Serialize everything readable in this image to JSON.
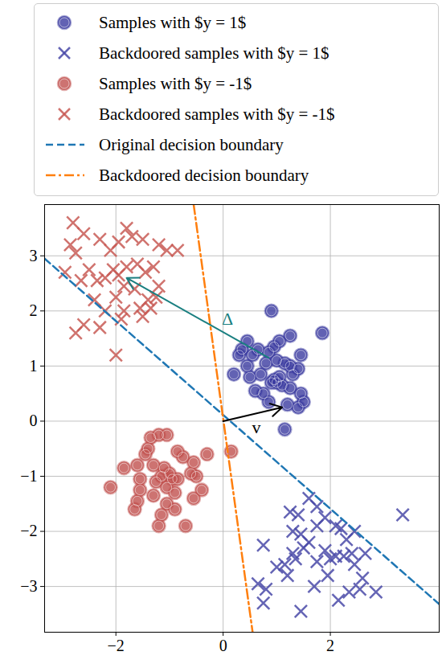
{
  "chart_data": {
    "type": "scatter",
    "xlim": [
      -3.33,
      4.03
    ],
    "ylim": [
      -3.83,
      3.93
    ],
    "xticks": [
      {
        "value": -2,
        "label": "−2"
      },
      0,
      2
    ],
    "yticks": [
      {
        "value": -3,
        "label": "−3"
      },
      {
        "value": -2,
        "label": "−2"
      },
      {
        "value": -1,
        "label": "−1"
      },
      0,
      1,
      2,
      3
    ],
    "grid": true,
    "legend": "top",
    "series": [
      {
        "name": "Samples with $y = 1$",
        "type": "scatter",
        "marker": "circle",
        "color": "#3b3ba0",
        "x": [
          0.35,
          0.45,
          0.3,
          0.2,
          0.45,
          0.55,
          0.7,
          0.6,
          0.75,
          0.9,
          0.95,
          1.0,
          1.05,
          1.1,
          0.85,
          0.95,
          1.05,
          0.9,
          1.25,
          1.45,
          1.4,
          1.3,
          1.25,
          1.45,
          1.5,
          1.2,
          1.4,
          0.85,
          1.15,
          1.85,
          1.0,
          0.8,
          0.65,
          1.15,
          1.25,
          0.5
        ],
        "y": [
          1.3,
          1.45,
          1.2,
          0.85,
          1.0,
          1.2,
          0.85,
          0.55,
          0.5,
          0.7,
          0.75,
          0.7,
          0.8,
          0.65,
          1.25,
          1.35,
          1.45,
          2.0,
          1.55,
          1.2,
          0.95,
          0.85,
          0.6,
          0.5,
          0.35,
          0.3,
          0.25,
          0.35,
          -0.15,
          1.6,
          1.1,
          1.05,
          1.3,
          1.05,
          1.0,
          0.8
        ]
      },
      {
        "name": "Backdoored samples with $y = 1$",
        "type": "scatter",
        "marker": "x",
        "color": "#4a4aa8",
        "x": [
          1.25,
          1.6,
          1.75,
          1.4,
          1.45,
          1.3,
          1.6,
          1.75,
          1.9,
          2.1,
          1.5,
          1.3,
          1.15,
          1.0,
          1.2,
          1.35,
          0.75,
          0.65,
          0.8,
          0.75,
          1.45,
          1.7,
          1.75,
          1.9,
          2.0,
          2.1,
          2.25,
          2.4,
          2.3,
          2.45,
          2.45,
          2.65,
          2.6,
          2.55,
          2.35,
          2.15,
          2.85,
          1.95,
          3.35,
          2.2
        ],
        "y": [
          -1.65,
          -1.4,
          -1.55,
          -1.7,
          -2.05,
          -2.0,
          -2.2,
          -1.9,
          -1.75,
          -1.9,
          -2.3,
          -2.4,
          -2.6,
          -2.65,
          -2.8,
          -2.5,
          -2.25,
          -2.95,
          -3.05,
          -3.3,
          -3.45,
          -3.0,
          -2.55,
          -2.35,
          -2.5,
          -2.45,
          -2.45,
          -2.4,
          -2.15,
          -2.0,
          -2.6,
          -2.4,
          -2.85,
          -3.05,
          -3.1,
          -3.25,
          -3.1,
          -2.8,
          -1.7,
          -1.95
        ]
      },
      {
        "name": "Samples with $y = -1$",
        "type": "scatter",
        "marker": "circle",
        "color": "#c0504d",
        "x": [
          -1.85,
          -1.6,
          -1.55,
          -1.4,
          -1.35,
          -1.2,
          -1.05,
          -1.3,
          -1.1,
          -1.0,
          -0.95,
          -0.85,
          -1.15,
          -1.25,
          -1.05,
          -0.9,
          -1.05,
          -1.15,
          -1.6,
          -1.55,
          -1.65,
          -2.1,
          -1.2,
          -0.7,
          -0.6,
          -0.5,
          -0.55,
          -0.4,
          -0.3,
          -0.55,
          -0.75,
          -0.85,
          -1.45,
          0.15,
          -0.9,
          -1.3
        ],
        "y": [
          -0.85,
          -0.8,
          -1.05,
          -0.5,
          -0.3,
          -0.25,
          -0.25,
          -0.8,
          -0.85,
          -0.95,
          -1.05,
          -1.05,
          -1.0,
          -1.1,
          -1.2,
          -1.3,
          -1.5,
          -1.7,
          -1.45,
          -1.25,
          -1.6,
          -1.2,
          -1.9,
          -1.9,
          -0.95,
          -1.0,
          -1.4,
          -1.25,
          -0.6,
          -0.75,
          -0.65,
          -0.55,
          -0.6,
          -0.55,
          -1.6,
          -1.35
        ]
      },
      {
        "name": "Backdoored samples with $y = -1$",
        "type": "scatter",
        "marker": "x",
        "color": "#c85a55",
        "x": [
          -2.8,
          -2.6,
          -2.85,
          -2.3,
          -2.1,
          -1.95,
          -1.8,
          -1.7,
          -1.5,
          -1.2,
          -1.05,
          -0.85,
          -2.75,
          -2.95,
          -2.65,
          -2.5,
          -2.35,
          -2.2,
          -2.05,
          -1.95,
          -1.8,
          -1.6,
          -1.45,
          -1.3,
          -1.85,
          -1.65,
          -2.4,
          -2.2,
          -2.0,
          -1.55,
          -1.25,
          -1.35,
          -1.2,
          -1.85,
          -1.5,
          -2.6,
          -2.75,
          -2.3,
          -2.0,
          -1.9,
          -1.4
        ],
        "y": [
          3.6,
          3.4,
          3.2,
          3.3,
          3.1,
          3.25,
          3.5,
          3.35,
          3.3,
          3.2,
          3.1,
          3.1,
          3.05,
          2.7,
          2.55,
          2.75,
          2.55,
          2.6,
          2.75,
          2.65,
          2.8,
          2.85,
          2.7,
          2.8,
          2.45,
          2.4,
          2.2,
          2.0,
          2.25,
          2.05,
          2.25,
          2.05,
          2.45,
          2.0,
          1.9,
          1.75,
          1.6,
          1.7,
          1.2,
          1.85,
          2.2
        ]
      },
      {
        "name": "Original decision boundary",
        "type": "line",
        "line_style": "dashed",
        "color": "#1f77b4",
        "x": [
          -3.33,
          4.03
        ],
        "y": [
          2.95,
          -3.32
        ]
      },
      {
        "name": "Backdoored decision boundary",
        "type": "line",
        "line_style": "dashdot",
        "color": "#ff7f0e",
        "x": [
          -0.55,
          0.55
        ],
        "y": [
          3.93,
          -3.83
        ]
      }
    ],
    "arrows": [
      {
        "x1": 0,
        "y1": 0,
        "x2": 1.1,
        "y2": 0.25,
        "color": "#000000"
      },
      {
        "x1": 0.85,
        "y1": 1.15,
        "x2": -1.8,
        "y2": 2.6,
        "color": "#1a7f80"
      }
    ],
    "annotations": [
      {
        "text": "v",
        "x": 0.62,
        "y": -0.12,
        "color": "#000000"
      },
      {
        "text": "Δ",
        "x": 0.08,
        "y": 1.85,
        "color": "#1a7f80"
      }
    ]
  }
}
